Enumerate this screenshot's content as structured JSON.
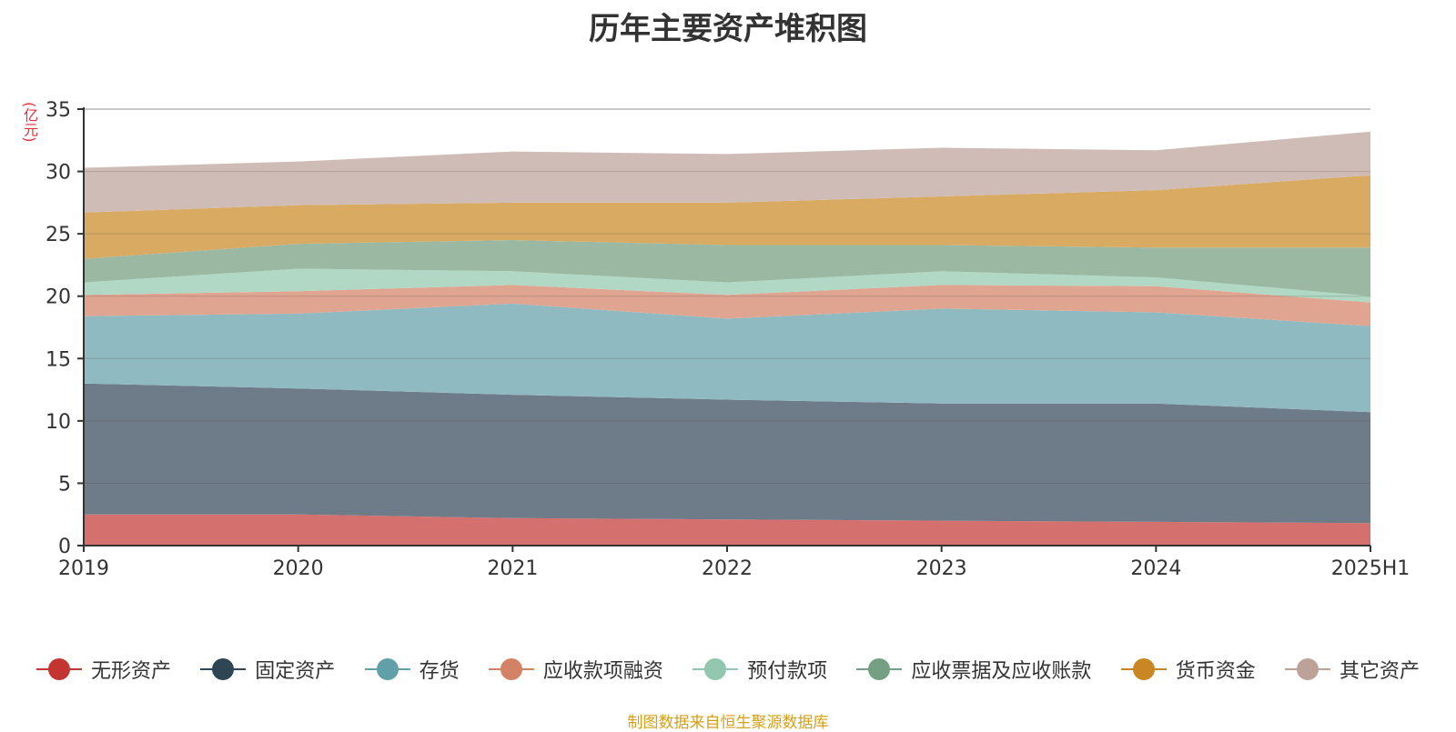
{
  "chart_data": {
    "type": "area",
    "stacked": true,
    "title": "历年主要资产堆积图",
    "unit_label": "(亿元)",
    "categories": [
      "2019",
      "2020",
      "2021",
      "2022",
      "2023",
      "2024",
      "2025H1"
    ],
    "ylim": [
      0,
      35
    ],
    "yticks": [
      0,
      5,
      10,
      15,
      20,
      25,
      30,
      35
    ],
    "grid": true,
    "legend_position": "bottom",
    "series": [
      {
        "name": "无形资产",
        "color": "#c23531",
        "fill": "#d4706d",
        "values": [
          2.5,
          2.5,
          2.2,
          2.1,
          2.0,
          1.9,
          1.8
        ]
      },
      {
        "name": "固定资产",
        "color": "#2f4554",
        "fill": "#6e7b88",
        "values": [
          10.5,
          10.1,
          9.9,
          9.6,
          9.4,
          9.5,
          8.9
        ]
      },
      {
        "name": "存货",
        "color": "#61a0a8",
        "fill": "#90bac1",
        "values": [
          5.4,
          6.0,
          7.3,
          6.5,
          7.6,
          7.3,
          6.9
        ]
      },
      {
        "name": "应收款项融资",
        "color": "#d48265",
        "fill": "#e0a590",
        "values": [
          1.7,
          1.8,
          1.5,
          1.9,
          1.9,
          2.1,
          1.9
        ]
      },
      {
        "name": "预付款项",
        "color": "#91c7ae",
        "fill": "#b0d8c4",
        "values": [
          1.0,
          1.8,
          1.1,
          1.0,
          1.1,
          0.7,
          0.5
        ]
      },
      {
        "name": "应收票据及应收账款",
        "color": "#749f83",
        "fill": "#9bb9a2",
        "values": [
          1.9,
          2.0,
          2.5,
          3.0,
          2.1,
          2.4,
          3.9
        ]
      },
      {
        "name": "货币资金",
        "color": "#ca8622",
        "fill": "#d9aa62",
        "values": [
          3.7,
          3.1,
          3.0,
          3.4,
          3.9,
          4.6,
          5.8
        ]
      },
      {
        "name": "其它资产",
        "color": "#bda29a",
        "fill": "#d0bcb6",
        "values": [
          3.6,
          3.5,
          4.1,
          3.9,
          3.9,
          3.2,
          3.5
        ]
      }
    ]
  },
  "footer": {
    "source": "制图数据来自恒生聚源数据库"
  }
}
